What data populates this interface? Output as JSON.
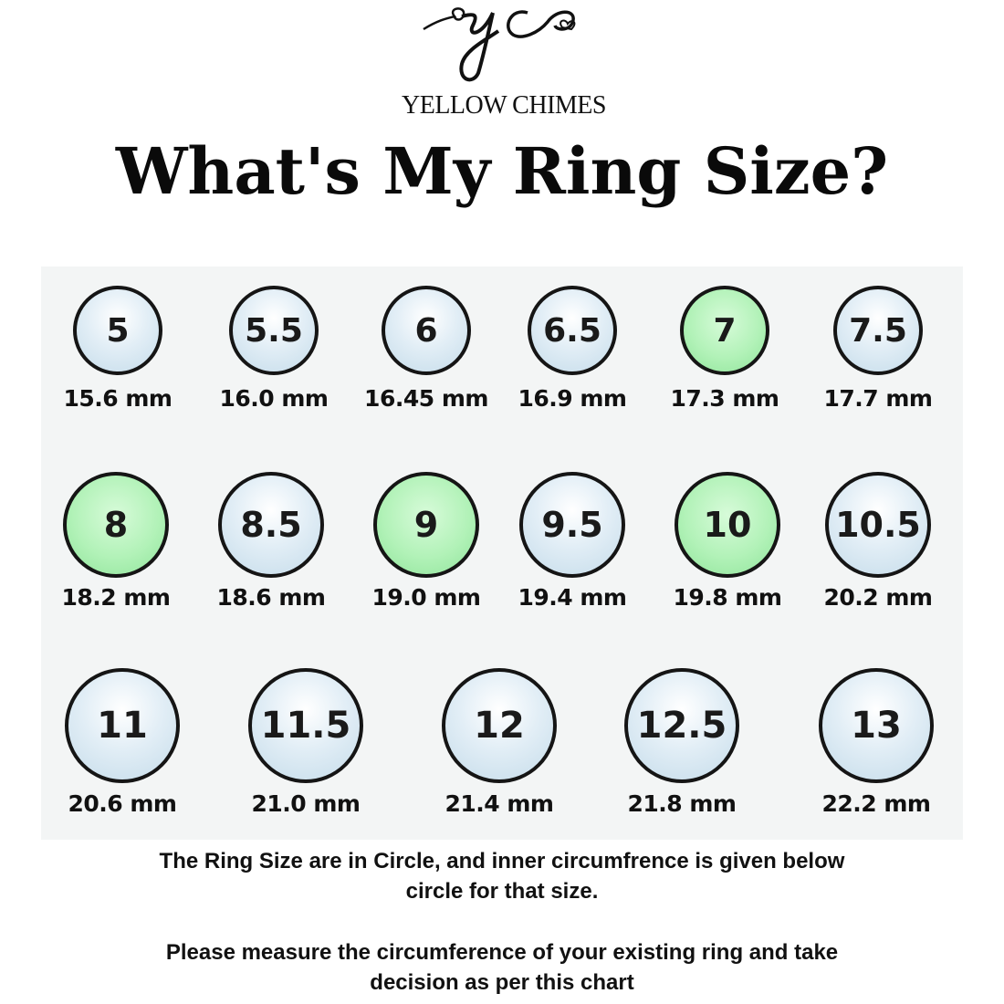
{
  "logo": {
    "monogram": "yc",
    "brand": "YELLOW CHIMES"
  },
  "title": "What's My Ring Size?",
  "colors": {
    "ring_fill": "#cfe2ee",
    "ring_highlight": "#a8efb0",
    "ring_border": "#151515",
    "panel": "#f3f5f5"
  },
  "rows": [
    [
      {
        "size": "5",
        "mm": "15.6 mm",
        "highlight": false
      },
      {
        "size": "5.5",
        "mm": "16.0 mm",
        "highlight": false
      },
      {
        "size": "6",
        "mm": "16.45 mm",
        "highlight": false
      },
      {
        "size": "6.5",
        "mm": "16.9 mm",
        "highlight": false
      },
      {
        "size": "7",
        "mm": "17.3 mm",
        "highlight": true
      },
      {
        "size": "7.5",
        "mm": "17.7 mm",
        "highlight": false
      }
    ],
    [
      {
        "size": "8",
        "mm": "18.2 mm",
        "highlight": true
      },
      {
        "size": "8.5",
        "mm": "18.6 mm",
        "highlight": false
      },
      {
        "size": "9",
        "mm": "19.0 mm",
        "highlight": true
      },
      {
        "size": "9.5",
        "mm": "19.4 mm",
        "highlight": false
      },
      {
        "size": "10",
        "mm": "19.8 mm",
        "highlight": true
      },
      {
        "size": "10.5",
        "mm": "20.2 mm",
        "highlight": false
      }
    ],
    [
      {
        "size": "11",
        "mm": "20.6 mm",
        "highlight": false
      },
      {
        "size": "11.5",
        "mm": "21.0 mm",
        "highlight": false
      },
      {
        "size": "12",
        "mm": "21.4 mm",
        "highlight": false
      },
      {
        "size": "12.5",
        "mm": "21.8 mm",
        "highlight": false
      },
      {
        "size": "13",
        "mm": "22.2 mm",
        "highlight": false
      }
    ]
  ],
  "notes": {
    "line1": "The Ring Size are in Circle, and inner circumfrence is  given below",
    "line2": "circle for that size.",
    "line3": "Please measure the circumference of your existing ring and take",
    "line4": "decision as per this chart"
  }
}
